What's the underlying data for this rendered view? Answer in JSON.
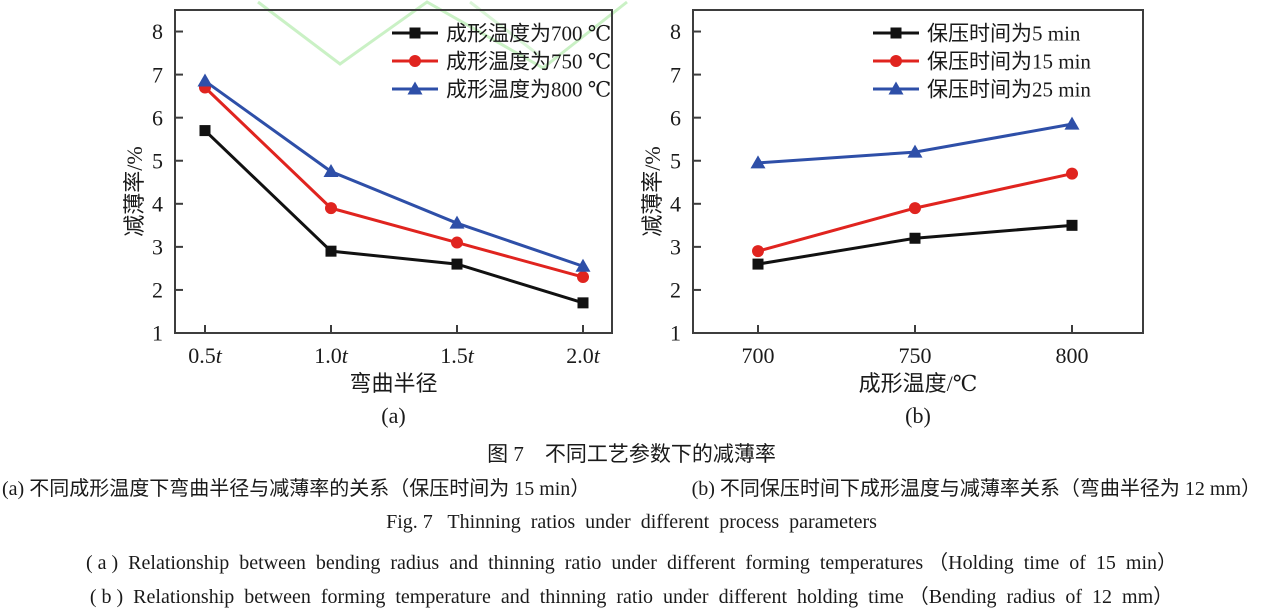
{
  "colors": {
    "axis": "#3d3d3d",
    "text": "#1a1a1a",
    "series_black": "#111111",
    "series_red": "#e0241f",
    "series_blue": "#2e4fa8",
    "watermark_green": "#c4efbf",
    "background": "#ffffff"
  },
  "figure": {
    "caption_cn": "图 7　不同工艺参数下的减薄率",
    "subcaption_cn_a": "(a) 不同成形温度下弯曲半径与减薄率的关系（保压时间为 15 min）",
    "subcaption_cn_b": "(b) 不同保压时间下成形温度与减薄率关系（弯曲半径为 12 mm）",
    "caption_en": "Fig. 7   Thinning  ratios  under  different  process  parameters",
    "subcaption_en_a": "( a )  Relationship  between  bending  radius  and  thinning  ratio  under  different  forming  temperatures （Holding  time  of  15  min）",
    "subcaption_en_b": "( b )  Relationship  between  forming  temperature  and  thinning  ratio  under  different  holding  time （Bending  radius  of  12  mm）"
  },
  "chart_data": [
    {
      "id": "a",
      "type": "line",
      "categories": [
        "0.5t",
        "1.0t",
        "1.5t",
        "2.0t"
      ],
      "xlabel": "弯曲半径",
      "ylabel": "减薄率/%",
      "sublabel": "(a)",
      "ylim": [
        1,
        8.5
      ],
      "yticks": [
        1,
        2,
        3,
        4,
        5,
        6,
        7,
        8
      ],
      "grid": false,
      "legend_position": "inside-top-right",
      "series": [
        {
          "name": "成形温度为700 ℃",
          "marker": "square",
          "color": "#111111",
          "values": [
            5.7,
            2.9,
            2.6,
            1.7
          ]
        },
        {
          "name": "成形温度为750 ℃",
          "marker": "circle",
          "color": "#e0241f",
          "values": [
            6.7,
            3.9,
            3.1,
            2.3
          ]
        },
        {
          "name": "成形温度为800 ℃",
          "marker": "triangle",
          "color": "#2e4fa8",
          "values": [
            6.85,
            4.75,
            3.55,
            2.55
          ]
        }
      ]
    },
    {
      "id": "b",
      "type": "line",
      "categories": [
        "700",
        "750",
        "800"
      ],
      "xlabel": "成形温度/℃",
      "ylabel": "减薄率/%",
      "sublabel": "(b)",
      "ylim": [
        1,
        8.5
      ],
      "yticks": [
        1,
        2,
        3,
        4,
        5,
        6,
        7,
        8
      ],
      "grid": false,
      "legend_position": "inside-top-right",
      "series": [
        {
          "name": "保压时间为5 min",
          "marker": "square",
          "color": "#111111",
          "values": [
            2.6,
            3.2,
            3.5
          ]
        },
        {
          "name": "保压时间为15 min",
          "marker": "circle",
          "color": "#e0241f",
          "values": [
            2.9,
            3.9,
            4.7
          ]
        },
        {
          "name": "保压时间为25 min",
          "marker": "triangle",
          "color": "#2e4fa8",
          "values": [
            4.95,
            5.2,
            5.85
          ]
        }
      ]
    }
  ]
}
